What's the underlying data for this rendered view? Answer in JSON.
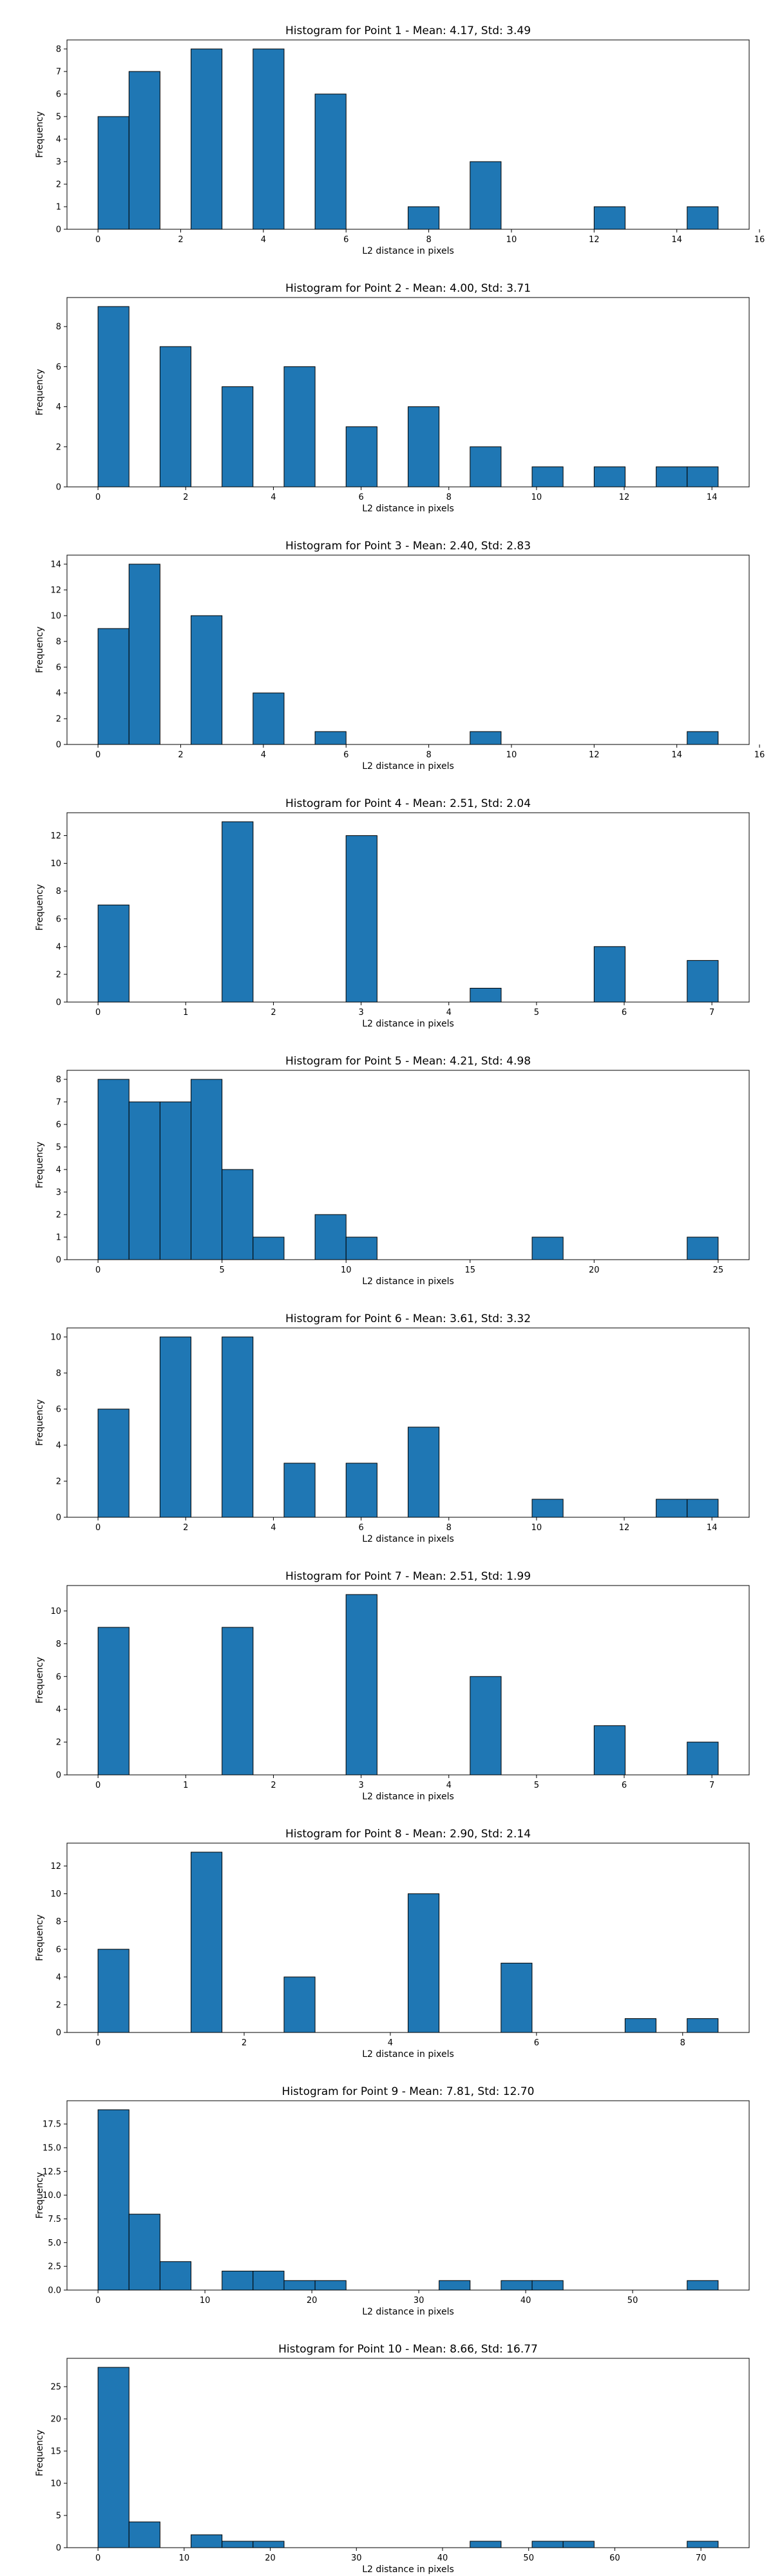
{
  "chart_data": [
    {
      "type": "bar",
      "title": "Histogram for Point 1 - Mean: 4.17, Std: 3.49",
      "xlabel": "L2 distance in pixels",
      "ylabel": "Frequency",
      "bin_width": 0.75,
      "bins": [
        {
          "x": 0.0,
          "count": 5
        },
        {
          "x": 0.75,
          "count": 7
        },
        {
          "x": 2.25,
          "count": 8
        },
        {
          "x": 3.75,
          "count": 8
        },
        {
          "x": 5.25,
          "count": 6
        },
        {
          "x": 7.5,
          "count": 1
        },
        {
          "x": 9.0,
          "count": 3
        },
        {
          "x": 12.0,
          "count": 1
        },
        {
          "x": 14.25,
          "count": 1
        }
      ],
      "xlim": [
        -0.75,
        15.75
      ],
      "ylim": [
        0,
        8.4
      ],
      "xticks": [
        0,
        2,
        4,
        6,
        8,
        10,
        12,
        14,
        16
      ],
      "yticks": [
        0,
        1,
        2,
        3,
        4,
        5,
        6,
        7,
        8
      ],
      "ytick_labels": [
        "0",
        "1",
        "2",
        "3",
        "4",
        "5",
        "6",
        "7",
        "8"
      ]
    },
    {
      "type": "bar",
      "title": "Histogram for Point 2 - Mean: 4.00, Std: 3.71",
      "xlabel": "L2 distance in pixels",
      "ylabel": "Frequency",
      "bin_width": 0.707,
      "bins": [
        {
          "x": 0.0,
          "count": 9
        },
        {
          "x": 1.414,
          "count": 7
        },
        {
          "x": 2.828,
          "count": 5
        },
        {
          "x": 4.243,
          "count": 6
        },
        {
          "x": 5.657,
          "count": 3
        },
        {
          "x": 7.071,
          "count": 4
        },
        {
          "x": 8.485,
          "count": 2
        },
        {
          "x": 9.899,
          "count": 1
        },
        {
          "x": 11.314,
          "count": 1
        },
        {
          "x": 12.728,
          "count": 1
        },
        {
          "x": 13.435,
          "count": 1
        }
      ],
      "xlim": [
        -0.707,
        14.849
      ],
      "ylim": [
        0,
        9.45
      ],
      "xticks": [
        0,
        2,
        4,
        6,
        8,
        10,
        12,
        14
      ],
      "yticks": [
        0,
        2,
        4,
        6,
        8
      ],
      "ytick_labels": [
        "0",
        "2",
        "4",
        "6",
        "8"
      ]
    },
    {
      "type": "bar",
      "title": "Histogram for Point 3 - Mean: 2.40, Std: 2.83",
      "xlabel": "L2 distance in pixels",
      "ylabel": "Frequency",
      "bin_width": 0.75,
      "bins": [
        {
          "x": 0.0,
          "count": 9
        },
        {
          "x": 0.75,
          "count": 14
        },
        {
          "x": 2.25,
          "count": 10
        },
        {
          "x": 3.75,
          "count": 4
        },
        {
          "x": 5.25,
          "count": 1
        },
        {
          "x": 9.0,
          "count": 1
        },
        {
          "x": 14.25,
          "count": 1
        }
      ],
      "xlim": [
        -0.75,
        15.75
      ],
      "ylim": [
        0,
        14.7
      ],
      "xticks": [
        0,
        2,
        4,
        6,
        8,
        10,
        12,
        14,
        16
      ],
      "yticks": [
        0,
        2,
        4,
        6,
        8,
        10,
        12,
        14
      ],
      "ytick_labels": [
        "0",
        "2",
        "4",
        "6",
        "8",
        "10",
        "12",
        "14"
      ]
    },
    {
      "type": "bar",
      "title": "Histogram for Point 4 - Mean: 2.51, Std: 2.04",
      "xlabel": "L2 distance in pixels",
      "ylabel": "Frequency",
      "bin_width": 0.354,
      "bins": [
        {
          "x": 0.0,
          "count": 7
        },
        {
          "x": 1.414,
          "count": 13
        },
        {
          "x": 2.828,
          "count": 12
        },
        {
          "x": 4.243,
          "count": 1
        },
        {
          "x": 5.657,
          "count": 4
        },
        {
          "x": 6.718,
          "count": 3
        }
      ],
      "xlim": [
        -0.354,
        7.425
      ],
      "ylim": [
        0,
        13.65
      ],
      "xticks": [
        0,
        1,
        2,
        3,
        4,
        5,
        6,
        7
      ],
      "yticks": [
        0,
        2,
        4,
        6,
        8,
        10,
        12
      ],
      "ytick_labels": [
        "0",
        "2",
        "4",
        "6",
        "8",
        "10",
        "12"
      ]
    },
    {
      "type": "bar",
      "title": "Histogram for Point 5 - Mean: 4.21, Std: 4.98",
      "xlabel": "L2 distance in pixels",
      "ylabel": "Frequency",
      "bin_width": 1.25,
      "bins": [
        {
          "x": 0.0,
          "count": 8
        },
        {
          "x": 1.25,
          "count": 7
        },
        {
          "x": 2.5,
          "count": 7
        },
        {
          "x": 3.75,
          "count": 8
        },
        {
          "x": 5.0,
          "count": 4
        },
        {
          "x": 6.25,
          "count": 1
        },
        {
          "x": 8.75,
          "count": 2
        },
        {
          "x": 10.0,
          "count": 1
        },
        {
          "x": 17.5,
          "count": 1
        },
        {
          "x": 23.75,
          "count": 1
        }
      ],
      "xlim": [
        -1.25,
        26.25
      ],
      "ylim": [
        0,
        8.4
      ],
      "xticks": [
        0,
        5,
        10,
        15,
        20,
        25
      ],
      "yticks": [
        0,
        1,
        2,
        3,
        4,
        5,
        6,
        7,
        8
      ],
      "ytick_labels": [
        "0",
        "1",
        "2",
        "3",
        "4",
        "5",
        "6",
        "7",
        "8"
      ]
    },
    {
      "type": "bar",
      "title": "Histogram for Point 6 - Mean: 3.61, Std: 3.32",
      "xlabel": "L2 distance in pixels",
      "ylabel": "Frequency",
      "bin_width": 0.707,
      "bins": [
        {
          "x": 0.0,
          "count": 6
        },
        {
          "x": 1.414,
          "count": 10
        },
        {
          "x": 2.828,
          "count": 10
        },
        {
          "x": 4.243,
          "count": 3
        },
        {
          "x": 5.657,
          "count": 3
        },
        {
          "x": 7.071,
          "count": 5
        },
        {
          "x": 9.899,
          "count": 1
        },
        {
          "x": 12.728,
          "count": 1
        },
        {
          "x": 13.435,
          "count": 1
        }
      ],
      "xlim": [
        -0.707,
        14.849
      ],
      "ylim": [
        0,
        10.5
      ],
      "xticks": [
        0,
        2,
        4,
        6,
        8,
        10,
        12,
        14
      ],
      "yticks": [
        0,
        2,
        4,
        6,
        8,
        10
      ],
      "ytick_labels": [
        "0",
        "2",
        "4",
        "6",
        "8",
        "10"
      ]
    },
    {
      "type": "bar",
      "title": "Histogram for Point 7 - Mean: 2.51, Std: 1.99",
      "xlabel": "L2 distance in pixels",
      "ylabel": "Frequency",
      "bin_width": 0.354,
      "bins": [
        {
          "x": 0.0,
          "count": 9
        },
        {
          "x": 1.414,
          "count": 9
        },
        {
          "x": 2.828,
          "count": 11
        },
        {
          "x": 4.243,
          "count": 6
        },
        {
          "x": 5.657,
          "count": 3
        },
        {
          "x": 6.718,
          "count": 2
        }
      ],
      "xlim": [
        -0.354,
        7.425
      ],
      "ylim": [
        0,
        11.55
      ],
      "xticks": [
        0,
        1,
        2,
        3,
        4,
        5,
        6,
        7
      ],
      "yticks": [
        0,
        2,
        4,
        6,
        8,
        10
      ],
      "ytick_labels": [
        "0",
        "2",
        "4",
        "6",
        "8",
        "10"
      ]
    },
    {
      "type": "bar",
      "title": "Histogram for Point 8 - Mean: 2.90, Std: 2.14",
      "xlabel": "L2 distance in pixels",
      "ylabel": "Frequency",
      "bin_width": 0.424,
      "bins": [
        {
          "x": 0.0,
          "count": 6
        },
        {
          "x": 1.273,
          "count": 13
        },
        {
          "x": 2.546,
          "count": 4
        },
        {
          "x": 4.243,
          "count": 10
        },
        {
          "x": 5.515,
          "count": 5
        },
        {
          "x": 7.212,
          "count": 1
        },
        {
          "x": 8.061,
          "count": 1
        }
      ],
      "xlim": [
        -0.424,
        8.91
      ],
      "ylim": [
        0,
        13.65
      ],
      "xticks": [
        0,
        2,
        4,
        6,
        8
      ],
      "yticks": [
        0,
        2,
        4,
        6,
        8,
        10,
        12
      ],
      "ytick_labels": [
        "0",
        "2",
        "4",
        "6",
        "8",
        "10",
        "12"
      ]
    },
    {
      "type": "bar",
      "title": "Histogram for Point 9 - Mean: 7.81, Std: 12.70",
      "xlabel": "L2 distance in pixels",
      "ylabel": "Frequency",
      "bin_width": 2.9,
      "bins": [
        {
          "x": 0.0,
          "count": 19
        },
        {
          "x": 2.9,
          "count": 8
        },
        {
          "x": 5.8,
          "count": 3
        },
        {
          "x": 11.6,
          "count": 2
        },
        {
          "x": 14.5,
          "count": 2
        },
        {
          "x": 17.4,
          "count": 1
        },
        {
          "x": 20.3,
          "count": 1
        },
        {
          "x": 31.9,
          "count": 1
        },
        {
          "x": 37.7,
          "count": 1
        },
        {
          "x": 40.6,
          "count": 1
        },
        {
          "x": 55.1,
          "count": 1
        }
      ],
      "xlim": [
        -2.9,
        60.9
      ],
      "ylim": [
        0,
        19.95
      ],
      "xticks": [
        0,
        10,
        20,
        30,
        40,
        50
      ],
      "yticks": [
        0,
        2.5,
        5.0,
        7.5,
        10.0,
        12.5,
        15.0,
        17.5
      ],
      "ytick_labels": [
        "0.0",
        "2.5",
        "5.0",
        "7.5",
        "10.0",
        "12.5",
        "15.0",
        "17.5"
      ]
    },
    {
      "type": "bar",
      "title": "Histogram for Point 10 - Mean: 8.66, Std: 16.77",
      "xlabel": "L2 distance in pixels",
      "ylabel": "Frequency",
      "bin_width": 3.6,
      "bins": [
        {
          "x": 0.0,
          "count": 28
        },
        {
          "x": 3.6,
          "count": 4
        },
        {
          "x": 10.8,
          "count": 2
        },
        {
          "x": 14.4,
          "count": 1
        },
        {
          "x": 18.0,
          "count": 1
        },
        {
          "x": 43.2,
          "count": 1
        },
        {
          "x": 50.4,
          "count": 1
        },
        {
          "x": 54.0,
          "count": 1
        },
        {
          "x": 68.4,
          "count": 1
        }
      ],
      "xlim": [
        -3.6,
        75.6
      ],
      "ylim": [
        0,
        29.4
      ],
      "xticks": [
        0,
        10,
        20,
        30,
        40,
        50,
        60,
        70
      ],
      "yticks": [
        0,
        5,
        10,
        15,
        20,
        25
      ],
      "ytick_labels": [
        "0",
        "5",
        "10",
        "15",
        "20",
        "25"
      ]
    }
  ],
  "style": {
    "bar_color": "#1f77b4",
    "edge_color": "#000000",
    "grid": false,
    "legend": "none"
  }
}
